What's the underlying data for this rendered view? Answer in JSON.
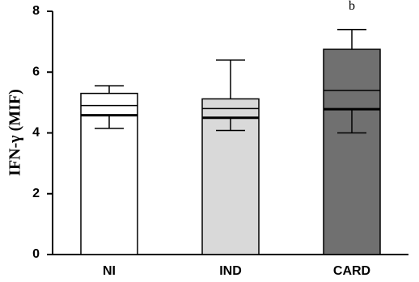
{
  "chart_data": {
    "type": "floating_box",
    "y_label": "IFN-γ (MIF)",
    "categories": [
      "NI",
      "IND",
      "CARD"
    ],
    "colors": [
      "#ffffff",
      "#d9d9d9",
      "#707070"
    ],
    "values": [
      5.3,
      5.12,
      6.75
    ],
    "inner_line": [
      4.9,
      4.8,
      5.4
    ],
    "center_line": [
      4.58,
      4.5,
      4.78
    ],
    "error_high": [
      5.55,
      6.4,
      7.4
    ],
    "error_low": [
      4.15,
      4.08,
      4.0
    ],
    "annotations": [
      {
        "category": 2,
        "y": 8.15,
        "text": "b"
      }
    ],
    "ylim": [
      0,
      8
    ],
    "yticks": [
      0,
      2,
      4,
      6,
      8
    ],
    "grid": false
  }
}
